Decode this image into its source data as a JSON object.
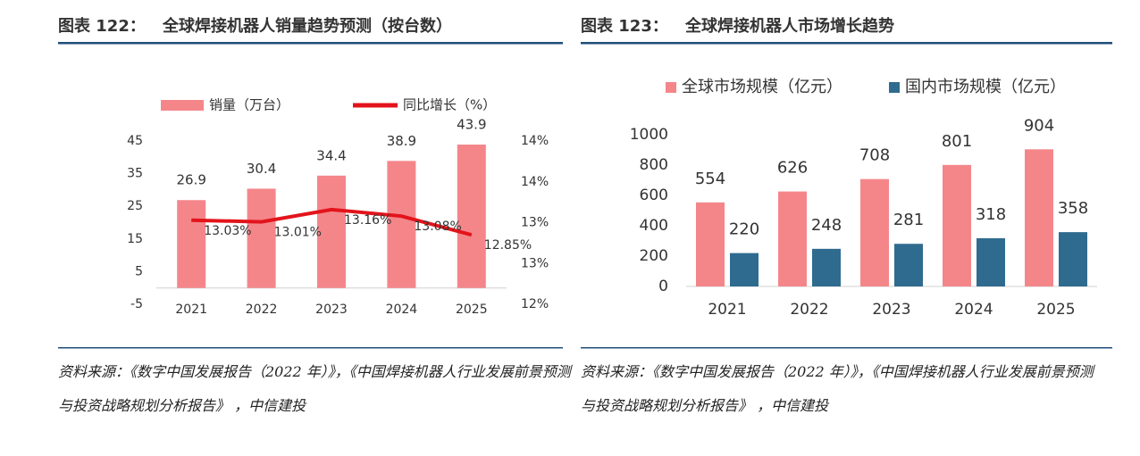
{
  "chart_data": [
    {
      "type": "bar",
      "figure_label": "图表 122：",
      "title": "全球焊接机器人销量趋势预测（按台数）",
      "categories": [
        "2021",
        "2022",
        "2023",
        "2024",
        "2025"
      ],
      "series": [
        {
          "name": "销量（万台）",
          "type": "bar",
          "color": "#f4868a",
          "values": [
            26.9,
            30.4,
            34.4,
            38.9,
            43.9
          ]
        },
        {
          "name": "同比增长（%）",
          "type": "line",
          "axis": "y2",
          "color": "#e3141b",
          "values": [
            13.03,
            13.01,
            13.16,
            13.08,
            12.85
          ],
          "value_labels": [
            "13.03%",
            "13.01%",
            "13.16%",
            "13.08%",
            "12.85%"
          ]
        }
      ],
      "ylim": [
        -5,
        45
      ],
      "yticks": [
        -5,
        5,
        15,
        25,
        35,
        45
      ],
      "y2lim": [
        12,
        14
      ],
      "y2ticks": [
        {
          "value": 12,
          "label": "12%"
        },
        {
          "value": 12.5,
          "label": "13%"
        },
        {
          "value": 13,
          "label": "13%"
        },
        {
          "value": 13.5,
          "label": "14%"
        },
        {
          "value": 14,
          "label": "14%"
        }
      ],
      "source": "资料来源：《数字中国发展报告（2022 年）》，《中国焊接机器人行业发展前景预测与投资战略规划分析报告》 ，中信建投"
    },
    {
      "type": "bar",
      "figure_label": "图表 123：",
      "title": "全球焊接机器人市场增长趋势",
      "categories": [
        "2021",
        "2022",
        "2023",
        "2024",
        "2025"
      ],
      "series": [
        {
          "name": "全球市场规模（亿元）",
          "type": "bar",
          "color": "#f4868a",
          "values": [
            554,
            626,
            708,
            801,
            904
          ]
        },
        {
          "name": "国内市场规模（亿元）",
          "type": "bar",
          "color": "#2f6b8f",
          "values": [
            220,
            248,
            281,
            318,
            358
          ]
        }
      ],
      "ylim": [
        0,
        1000
      ],
      "yticks": [
        0,
        200,
        400,
        600,
        800,
        1000
      ],
      "source": "资料来源：《数字中国发展报告（2022 年）》，《中国焊接机器人行业发展前景预测与投资战略规划分析报告》 ，中信建投"
    }
  ]
}
